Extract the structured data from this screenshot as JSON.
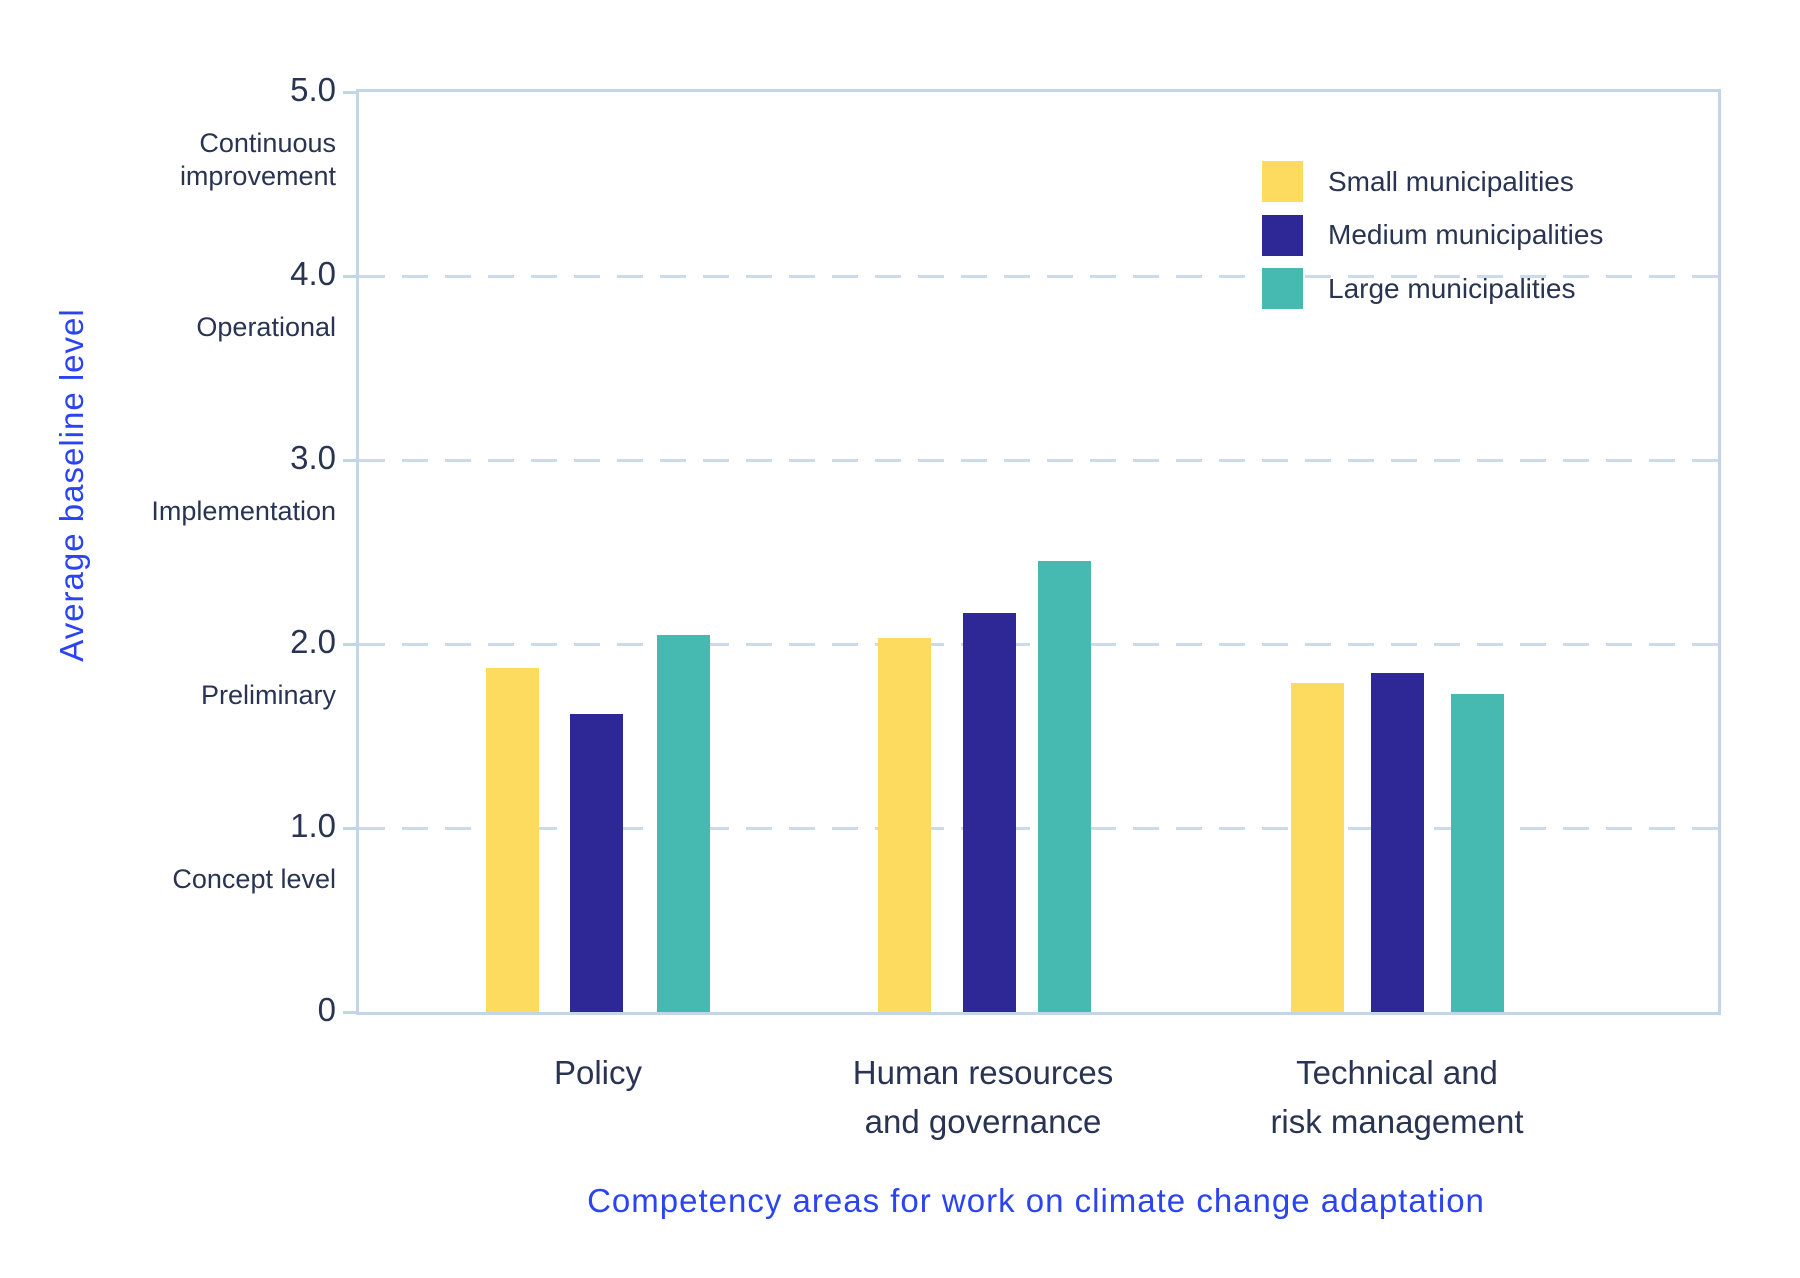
{
  "chart_data": {
    "type": "bar",
    "title": "",
    "xlabel": "Competency areas for work on climate change adaptation",
    "ylabel": "Average baseline level",
    "ylim": [
      0,
      5
    ],
    "grid": "dashed horizontal gridlines at 1.0, 2.0, 3.0, 4.0; solid box frame",
    "legend_position": "top-right inside plot",
    "categories": [
      "Policy",
      "Human resources and governance",
      "Technical and risk management"
    ],
    "categories_lines": [
      [
        "Policy"
      ],
      [
        "Human resources",
        "and governance"
      ],
      [
        "Technical and",
        "risk management"
      ]
    ],
    "series": [
      {
        "name": "Small municipalities",
        "color": "#fcdb5e",
        "values": [
          1.87,
          2.03,
          1.79
        ]
      },
      {
        "name": "Medium municipalities",
        "color": "#2e2897",
        "values": [
          1.62,
          2.17,
          1.84
        ]
      },
      {
        "name": "Large municipalities",
        "color": "#46b9b1",
        "values": [
          2.05,
          2.45,
          1.73
        ]
      }
    ],
    "y_ticks": [
      {
        "value": 5,
        "label": "5.0",
        "level_name": "Continuous improvement",
        "level_lines": [
          "Continuous",
          "improvement"
        ]
      },
      {
        "value": 4,
        "label": "4.0",
        "level_name": "Operational",
        "level_lines": [
          "Operational"
        ]
      },
      {
        "value": 3,
        "label": "3.0",
        "level_name": "Implementation",
        "level_lines": [
          "Implementation"
        ]
      },
      {
        "value": 2,
        "label": "2.0",
        "level_name": "Preliminary",
        "level_lines": [
          "Preliminary"
        ]
      },
      {
        "value": 1,
        "label": "1.0",
        "level_name": "Concept level",
        "level_lines": [
          "Concept level"
        ]
      },
      {
        "value": 0,
        "label": "0",
        "level_name": "",
        "level_lines": []
      }
    ]
  },
  "colors": {
    "background": "#ffffff",
    "frame_and_grid": "#c3d5e9",
    "text_navy": "#293453",
    "text_blue": "#2b44f2",
    "bar_small": "#fcdb5e",
    "bar_medium": "#2e2897",
    "bar_large": "#46b9b1"
  }
}
